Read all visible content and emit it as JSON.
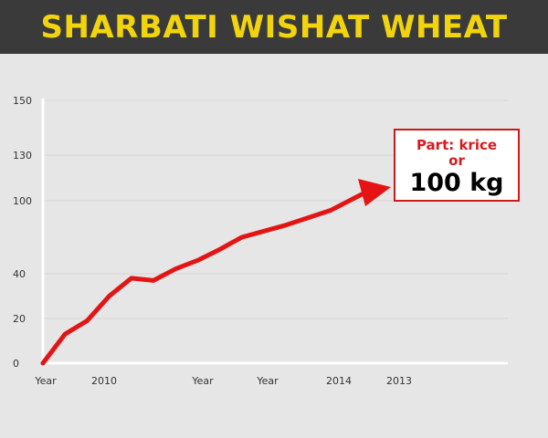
{
  "header": {
    "title": "SHARBATI WISHAT WHEAT"
  },
  "chart_data": {
    "type": "line",
    "title": "SHARBATI WISHAT WHEAT",
    "xlabel": "",
    "ylabel": "",
    "y_ticks": [
      0,
      20,
      40,
      100,
      130,
      150
    ],
    "x_tick_labels": [
      "Year",
      "2010",
      "Year",
      "Year",
      "2014",
      "2013"
    ],
    "grid": true,
    "series": [
      {
        "color": "#e41414",
        "points": [
          [
            0,
            0
          ],
          [
            1,
            13
          ],
          [
            2,
            19
          ],
          [
            3,
            30
          ],
          [
            4,
            38
          ],
          [
            5,
            37
          ],
          [
            6,
            44
          ],
          [
            7,
            51
          ],
          [
            8,
            60
          ],
          [
            9,
            70
          ],
          [
            10,
            75
          ],
          [
            11,
            80
          ],
          [
            12,
            86
          ],
          [
            13,
            92
          ]
        ],
        "arrow_end": [
          14,
          104
        ]
      }
    ],
    "annotation": {
      "line1": "Part: krice",
      "line2": "or",
      "value": "100 kg"
    },
    "colors": {
      "line": "#e41414",
      "banner_bg": "#3a3a3a",
      "banner_text": "#f2d40c",
      "background": "#e6e6e6",
      "callout_border": "#cc1a1a"
    }
  }
}
